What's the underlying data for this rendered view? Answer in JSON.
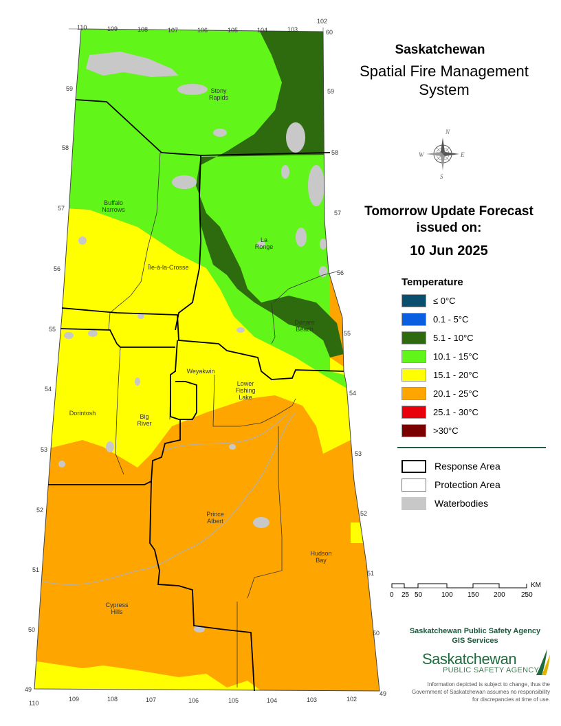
{
  "title": {
    "line1": "Saskatchewan",
    "line2": "Spatial Fire Management",
    "line3": "System"
  },
  "forecast": {
    "heading_line1": "Tomorrow Update Forecast",
    "heading_line2": "issued on:",
    "date": "10 Jun 2025"
  },
  "compass": {
    "n": "N",
    "s": "S",
    "e": "E",
    "w": "W"
  },
  "legend": {
    "title": "Temperature",
    "classes": [
      {
        "label": "≤ 0°C",
        "color": "#0a4f6e"
      },
      {
        "label": "0.1 - 5°C",
        "color": "#0a5fe0"
      },
      {
        "label": "5.1 - 10°C",
        "color": "#2e6b0e"
      },
      {
        "label": "10.1 - 15°C",
        "color": "#62f519"
      },
      {
        "label": "15.1 - 20°C",
        "color": "#ffff00"
      },
      {
        "label": "20.1 - 25°C",
        "color": "#ffa500"
      },
      {
        "label": "25.1 - 30°C",
        "color": "#e8000b"
      },
      {
        "label": ">30°C",
        "color": "#7a0000"
      }
    ],
    "symbols": [
      {
        "label": "Response Area"
      },
      {
        "label": "Protection Area"
      },
      {
        "label": "Waterbodies",
        "color": "#c8c8c8"
      }
    ]
  },
  "scale": {
    "unit": "KM",
    "ticks": [
      "0",
      "25",
      "50",
      "100",
      "150",
      "200",
      "250"
    ]
  },
  "agency": {
    "name": "Saskatchewan Public Safety Agency",
    "dept": "GIS  Services",
    "logo_main": "Saskatchewan",
    "logo_sub": "PUBLIC SAFETY AGENCY",
    "disclaimer": "Information depicted is subject to change, thus the Government of Saskatchewan assumes no responsibility for discrepancies at time of use."
  },
  "map": {
    "places": [
      {
        "name": "Stony",
        "name2": "Rapids"
      },
      {
        "name": "Buffalo",
        "name2": "Narrows"
      },
      {
        "name": "La",
        "name2": "Ronge"
      },
      {
        "name": "Île-à-la-Crosse",
        "name2": ""
      },
      {
        "name": "Denare",
        "name2": "Beach"
      },
      {
        "name": "Weyakwin",
        "name2": ""
      },
      {
        "name": "Lower",
        "name2": "Fishing",
        "name3": "Lake"
      },
      {
        "name": "Dorintosh",
        "name2": ""
      },
      {
        "name": "Big",
        "name2": "River"
      },
      {
        "name": "Prince",
        "name2": "Albert"
      },
      {
        "name": "Hudson",
        "name2": "Bay"
      },
      {
        "name": "Cypress",
        "name2": "Hills"
      }
    ],
    "lon_top": [
      "110",
      "109",
      "108",
      "107",
      "106",
      "105",
      "104",
      "103",
      "102"
    ],
    "lon_bottom": [
      "110",
      "109",
      "108",
      "107",
      "106",
      "105",
      "104",
      "103",
      "102"
    ],
    "lat_left": [
      "59",
      "58",
      "57",
      "56",
      "55",
      "54",
      "53",
      "52",
      "51",
      "50",
      "49"
    ],
    "lat_right": [
      "60",
      "59",
      "58",
      "57",
      "56",
      "55",
      "54",
      "53",
      "52",
      "51",
      "50",
      "49"
    ]
  }
}
